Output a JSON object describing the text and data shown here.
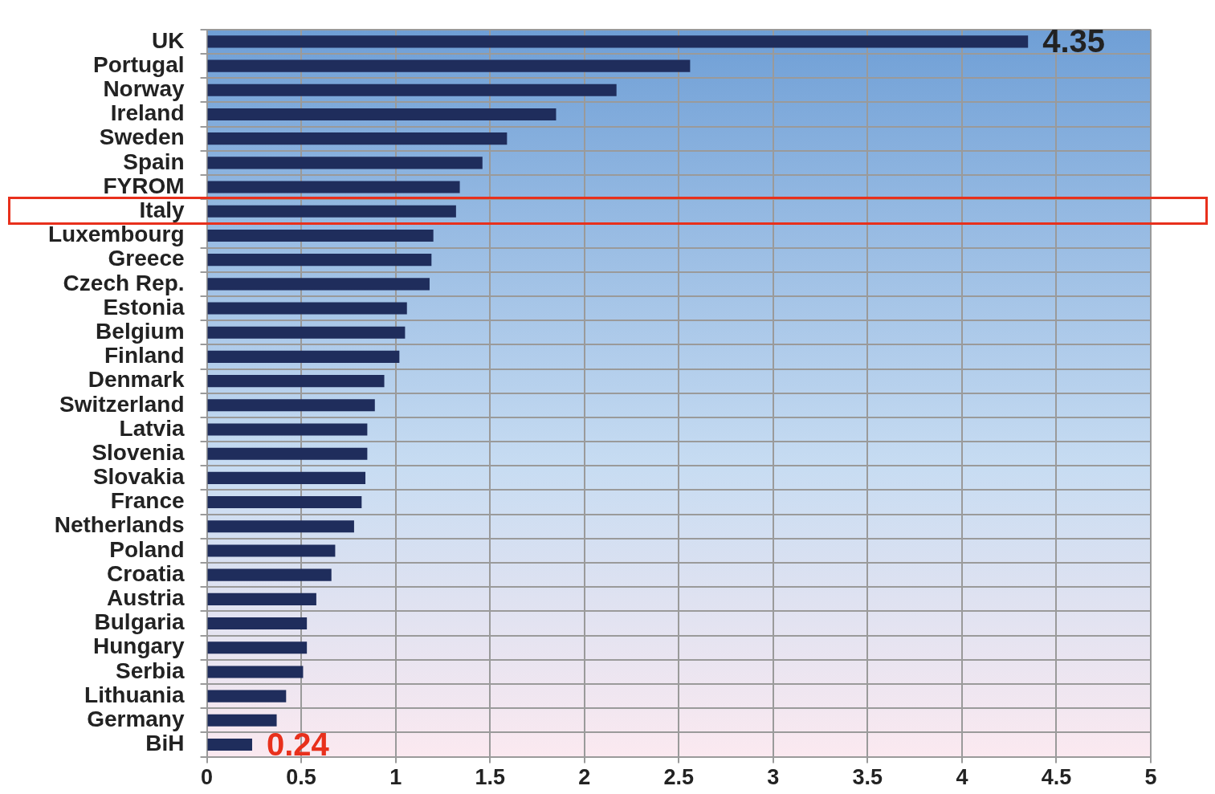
{
  "chart_data": {
    "type": "bar",
    "orientation": "horizontal",
    "categories": [
      "UK",
      "Portugal",
      "Norway",
      "Ireland",
      "Sweden",
      "Spain",
      "FYROM",
      "Italy",
      "Luxembourg",
      "Greece",
      "Czech Rep.",
      "Estonia",
      "Belgium",
      "Finland",
      "Denmark",
      "Switzerland",
      "Latvia",
      "Slovenia",
      "Slovakia",
      "France",
      "Netherlands",
      "Poland",
      "Croatia",
      "Austria",
      "Bulgaria",
      "Hungary",
      "Serbia",
      "Lithuania",
      "Germany",
      "BiH"
    ],
    "values": [
      4.35,
      2.56,
      2.17,
      1.85,
      1.59,
      1.46,
      1.34,
      1.32,
      1.2,
      1.19,
      1.18,
      1.06,
      1.05,
      1.02,
      0.94,
      0.89,
      0.85,
      0.85,
      0.84,
      0.82,
      0.78,
      0.68,
      0.66,
      0.58,
      0.53,
      0.53,
      0.51,
      0.42,
      0.37,
      0.24
    ],
    "color": "#1f2d5c",
    "xlim": [
      0,
      5
    ],
    "xticks": [
      0,
      0.5,
      1,
      1.5,
      2,
      2.5,
      3,
      3.5,
      4,
      4.5,
      5
    ],
    "grid": true,
    "annotations": [
      {
        "text": "4.35",
        "x": 4.35,
        "y": "UK"
      },
      {
        "text": "0.24",
        "x": 0.24,
        "y": "BiH"
      }
    ]
  }
}
